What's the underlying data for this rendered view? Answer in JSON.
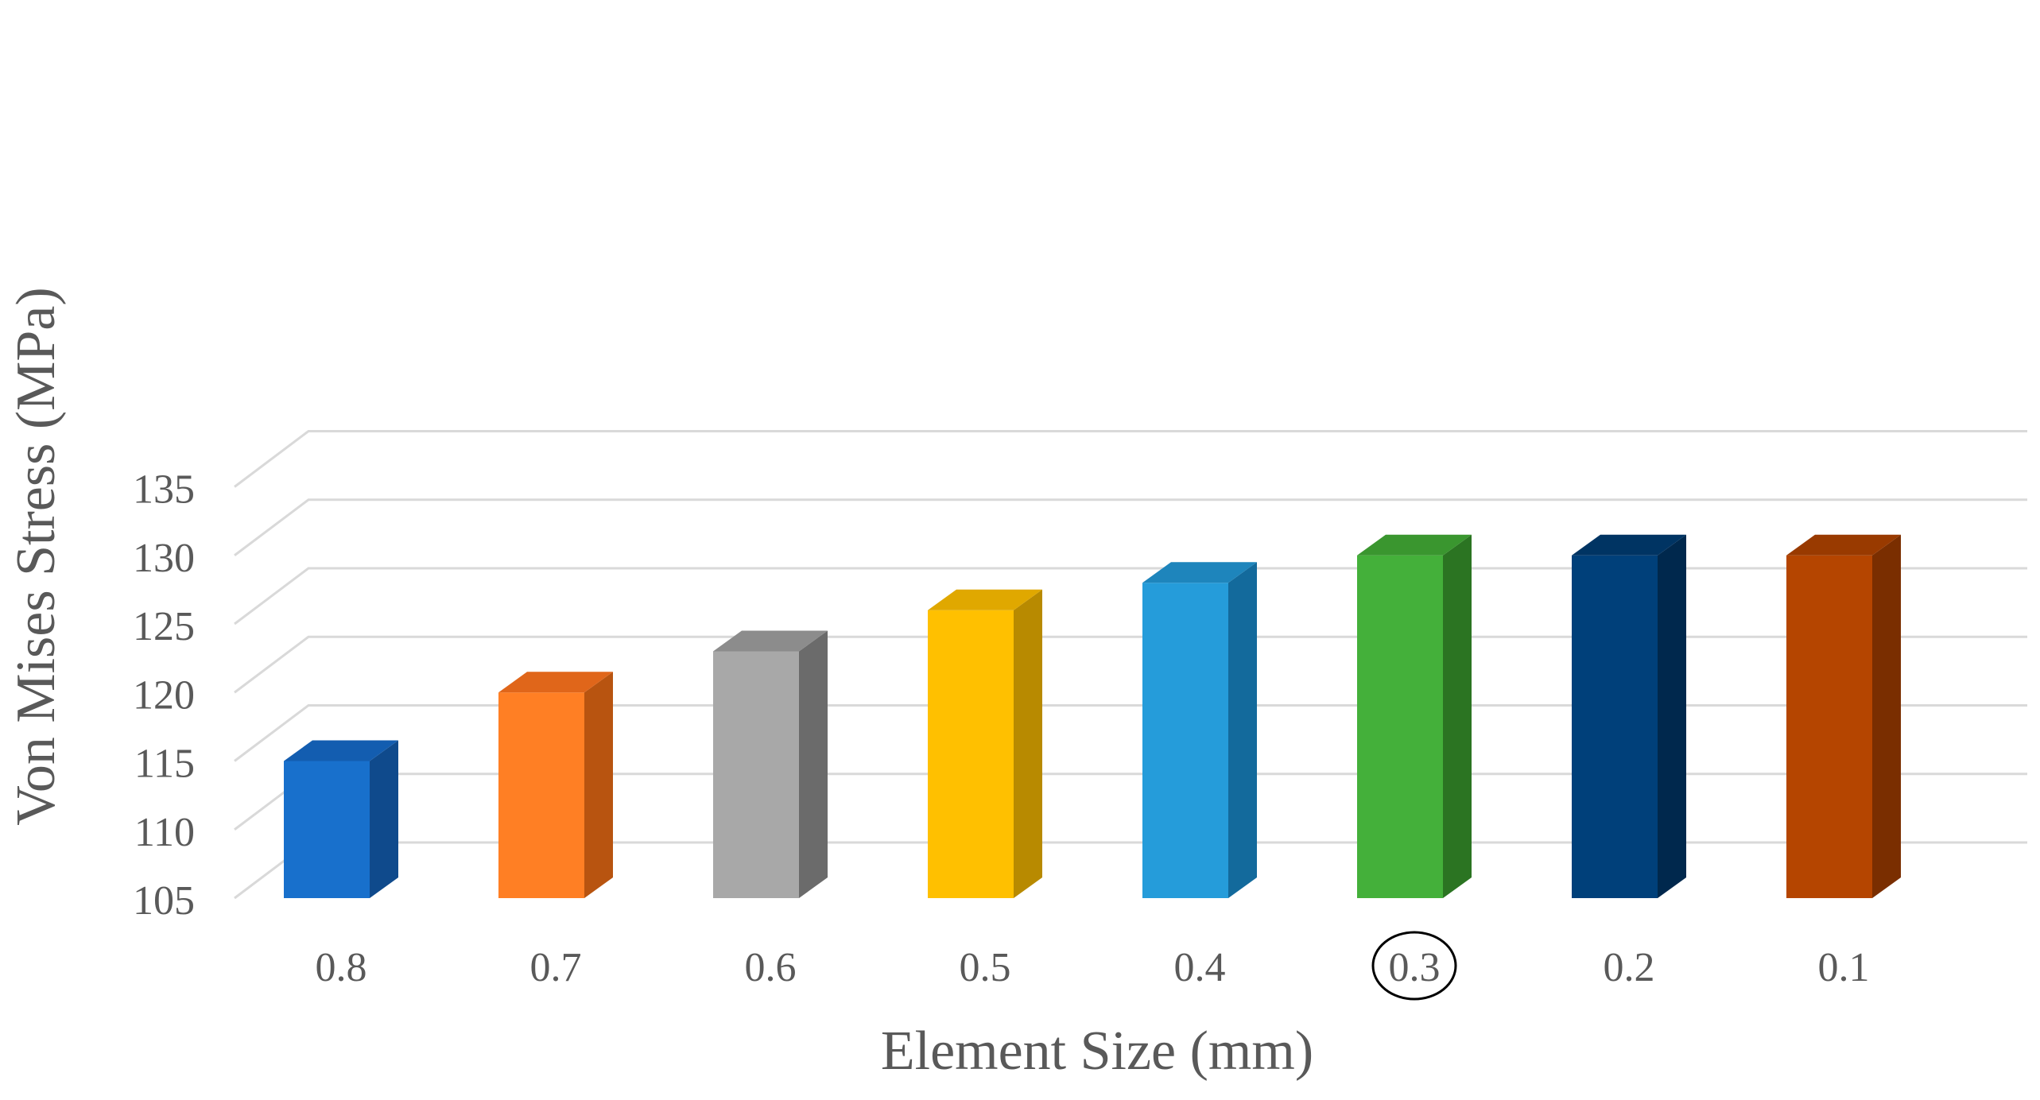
{
  "chart_data": {
    "type": "bar",
    "style": "3d-column",
    "title": "",
    "xlabel": "Element Size (mm)",
    "ylabel": "Von Mises Stress (MPa)",
    "ylim": [
      105,
      135
    ],
    "yticks": [
      "105",
      "110",
      "115",
      "120",
      "125",
      "130",
      "135"
    ],
    "grid": true,
    "legend": "none",
    "categories": [
      "0.8",
      "0.7",
      "0.6",
      "0.5",
      "0.4",
      "0.3",
      "0.2",
      "0.1"
    ],
    "values": [
      115,
      120,
      123,
      126,
      128,
      130,
      130,
      130
    ],
    "colors": [
      "#1870CC",
      "#FF7F24",
      "#A8A8A8",
      "#FFC000",
      "#259CDA",
      "#44B03A",
      "#00407A",
      "#B54500"
    ],
    "side_colors": [
      "#0F4A8C",
      "#B85410",
      "#6B6B6B",
      "#B88A00",
      "#136A9C",
      "#2B7422",
      "#00284D",
      "#7A2E00"
    ],
    "top_colors": [
      "#135DB0",
      "#E0661A",
      "#8C8C8C",
      "#E0A800",
      "#1E85BC",
      "#3A962F",
      "#003463",
      "#993A00"
    ],
    "highlighted_category": "0.3"
  }
}
